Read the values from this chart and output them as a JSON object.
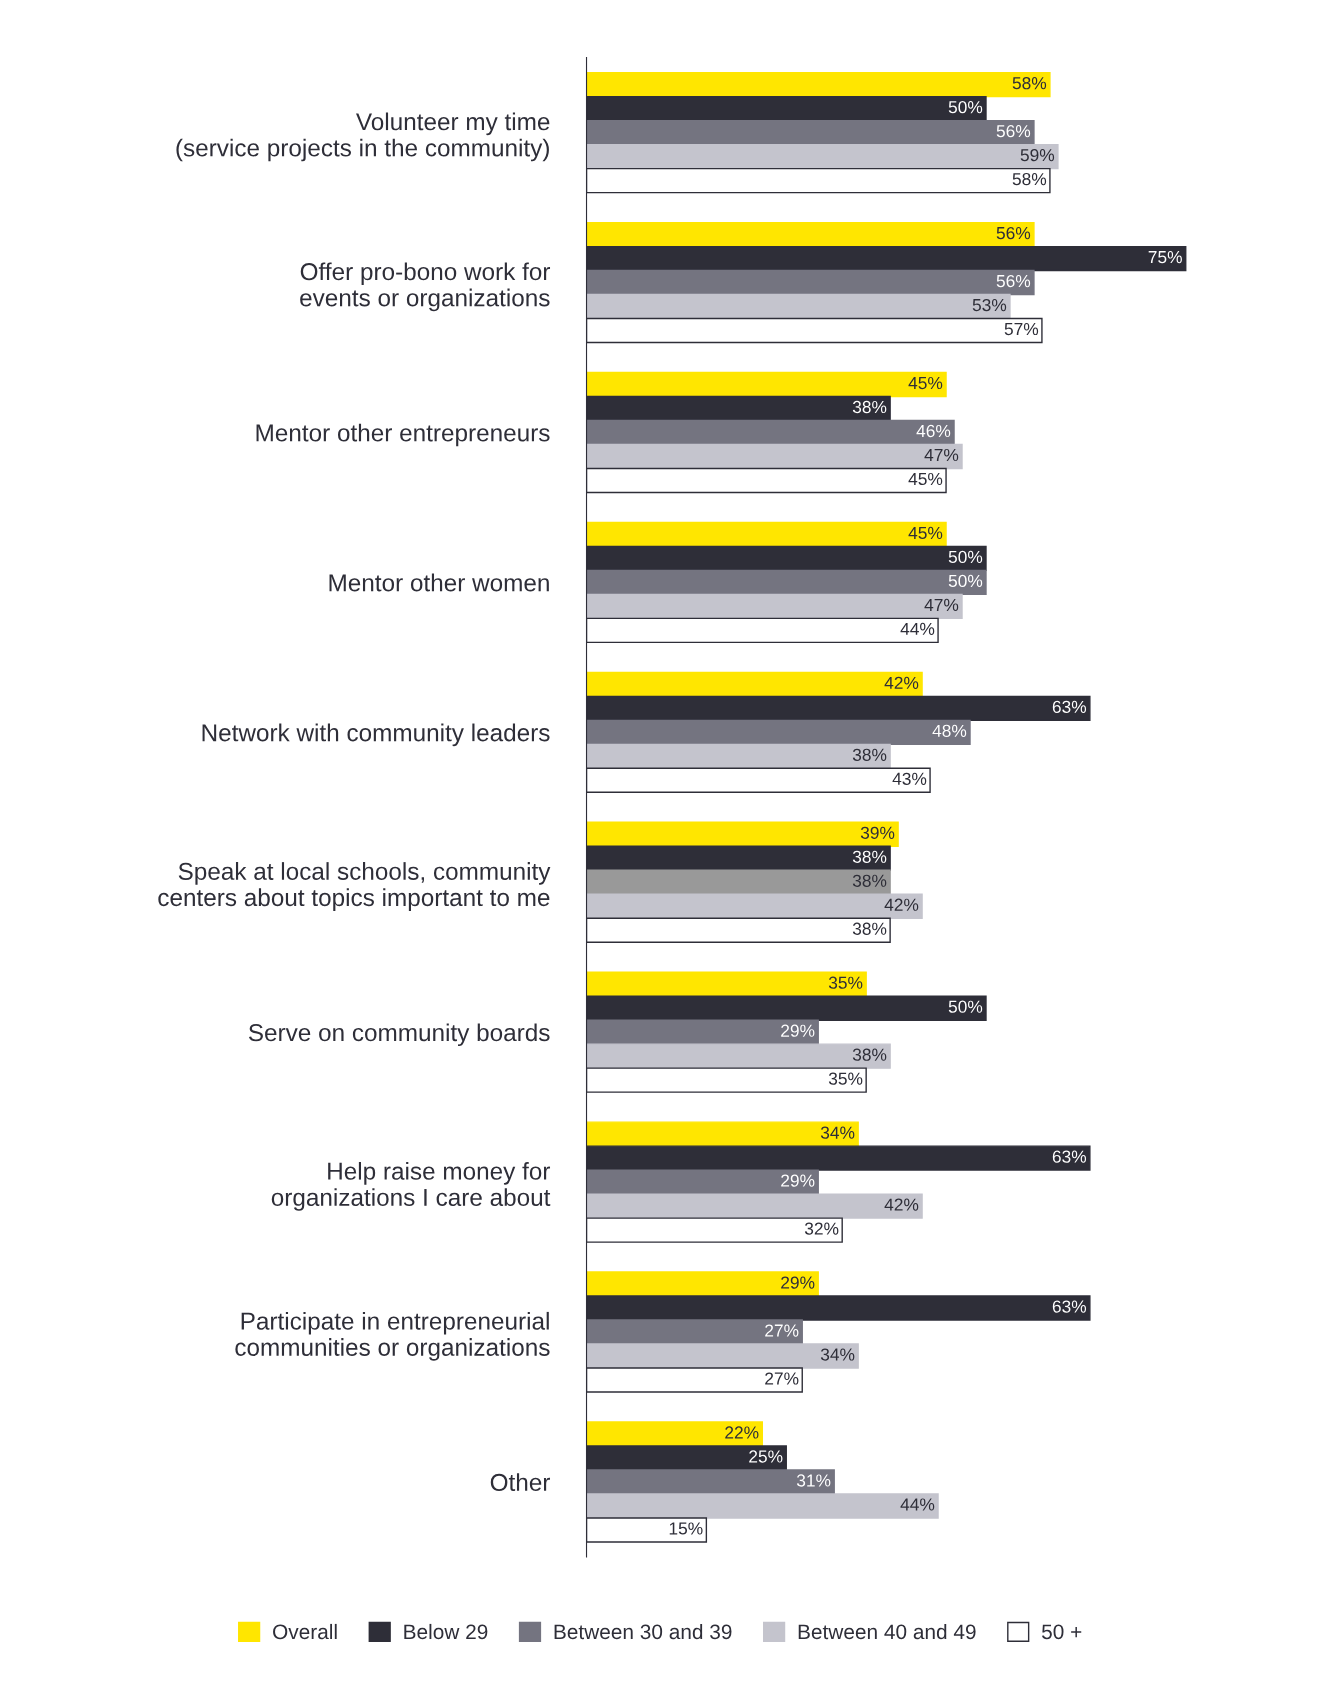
{
  "chart_data": {
    "type": "bar",
    "orientation": "horizontal",
    "legend": "bottom",
    "grid": false,
    "tick_labels": "y",
    "categories": [
      "Volunteer my time\n(service projects in the community)",
      "Offer pro-bono work for\nevents or organizations",
      "Mentor other entrepreneurs",
      "Mentor other women",
      "Network with community leaders",
      "Speak at local schools, community\ncenters about topics important to me",
      "Serve on community boards",
      "Help raise money for\norganizations I care about",
      "Participate in entrepreneurial\ncommunities or organizations",
      "Other"
    ],
    "series": [
      {
        "name": "Overall",
        "color": "#ffe600",
        "values": [
          58,
          56,
          45,
          45,
          42,
          39,
          35,
          34,
          29,
          22
        ],
        "value_labels": [
          "58%",
          "56%",
          "45%",
          "45%",
          "42%",
          "39%",
          "35%",
          "34%",
          "29%",
          "22%"
        ]
      },
      {
        "name": "Below 29",
        "color": "#2e2e38",
        "values": [
          50,
          75,
          38,
          50,
          63,
          38,
          50,
          63,
          63,
          25
        ],
        "value_labels": [
          "50%",
          "75%",
          "38%",
          "50%",
          "63%",
          "38%",
          "50%",
          "63%",
          "63%",
          "25%"
        ]
      },
      {
        "name": "Between 30 and 39",
        "color": "#747480",
        "colors": [
          "#747480",
          "#747480",
          "#747480",
          "#747480",
          "#747480",
          "#999999",
          "#747480",
          "#747480",
          "#747480",
          "#747480"
        ],
        "values": [
          56,
          56,
          46,
          50,
          48,
          38,
          29,
          29,
          27,
          31
        ],
        "value_labels": [
          "56%",
          "56%",
          "46%",
          "50%",
          "48%",
          "38%",
          "29%",
          "29%",
          "27%",
          "31%"
        ]
      },
      {
        "name": "Between 40 and 49",
        "color": "#c4c4cd",
        "values": [
          59,
          53,
          47,
          47,
          38,
          42,
          38,
          42,
          34,
          44
        ],
        "value_labels": [
          "59%",
          "53%",
          "47%",
          "47%",
          "38%",
          "42%",
          "38%",
          "42%",
          "34%",
          "44%"
        ]
      },
      {
        "name": "50 +",
        "color": "#ffffff",
        "values": [
          58,
          57,
          45,
          44,
          43,
          38,
          35,
          32,
          27,
          15
        ],
        "value_labels": [
          "58%",
          "57%",
          "45%",
          "44%",
          "43%",
          "38%",
          "35%",
          "32%",
          "27%",
          "15%"
        ]
      }
    ]
  }
}
